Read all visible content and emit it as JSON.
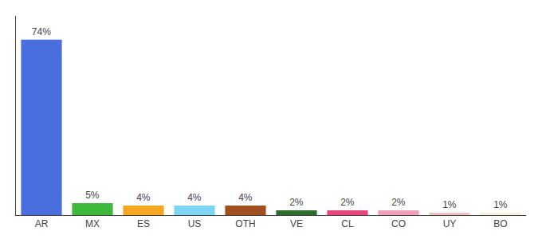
{
  "chart_data": {
    "type": "bar",
    "categories": [
      "AR",
      "MX",
      "ES",
      "US",
      "OTH",
      "VE",
      "CL",
      "CO",
      "UY",
      "BO"
    ],
    "values": [
      74,
      5,
      4,
      4,
      4,
      2,
      2,
      2,
      1,
      1
    ],
    "value_labels": [
      "74%",
      "5%",
      "4%",
      "4%",
      "4%",
      "2%",
      "2%",
      "2%",
      "1%",
      "1%"
    ],
    "colors": [
      "#4a6fdc",
      "#3db83b",
      "#f5a623",
      "#7dd4f5",
      "#a05020",
      "#2d6e2d",
      "#e8457a",
      "#f0a0b8",
      "#f5c0c0",
      "#f5f0d8"
    ],
    "ylim": [
      0,
      84
    ],
    "grid": false,
    "data_labels": true,
    "tick_labels": "x"
  }
}
